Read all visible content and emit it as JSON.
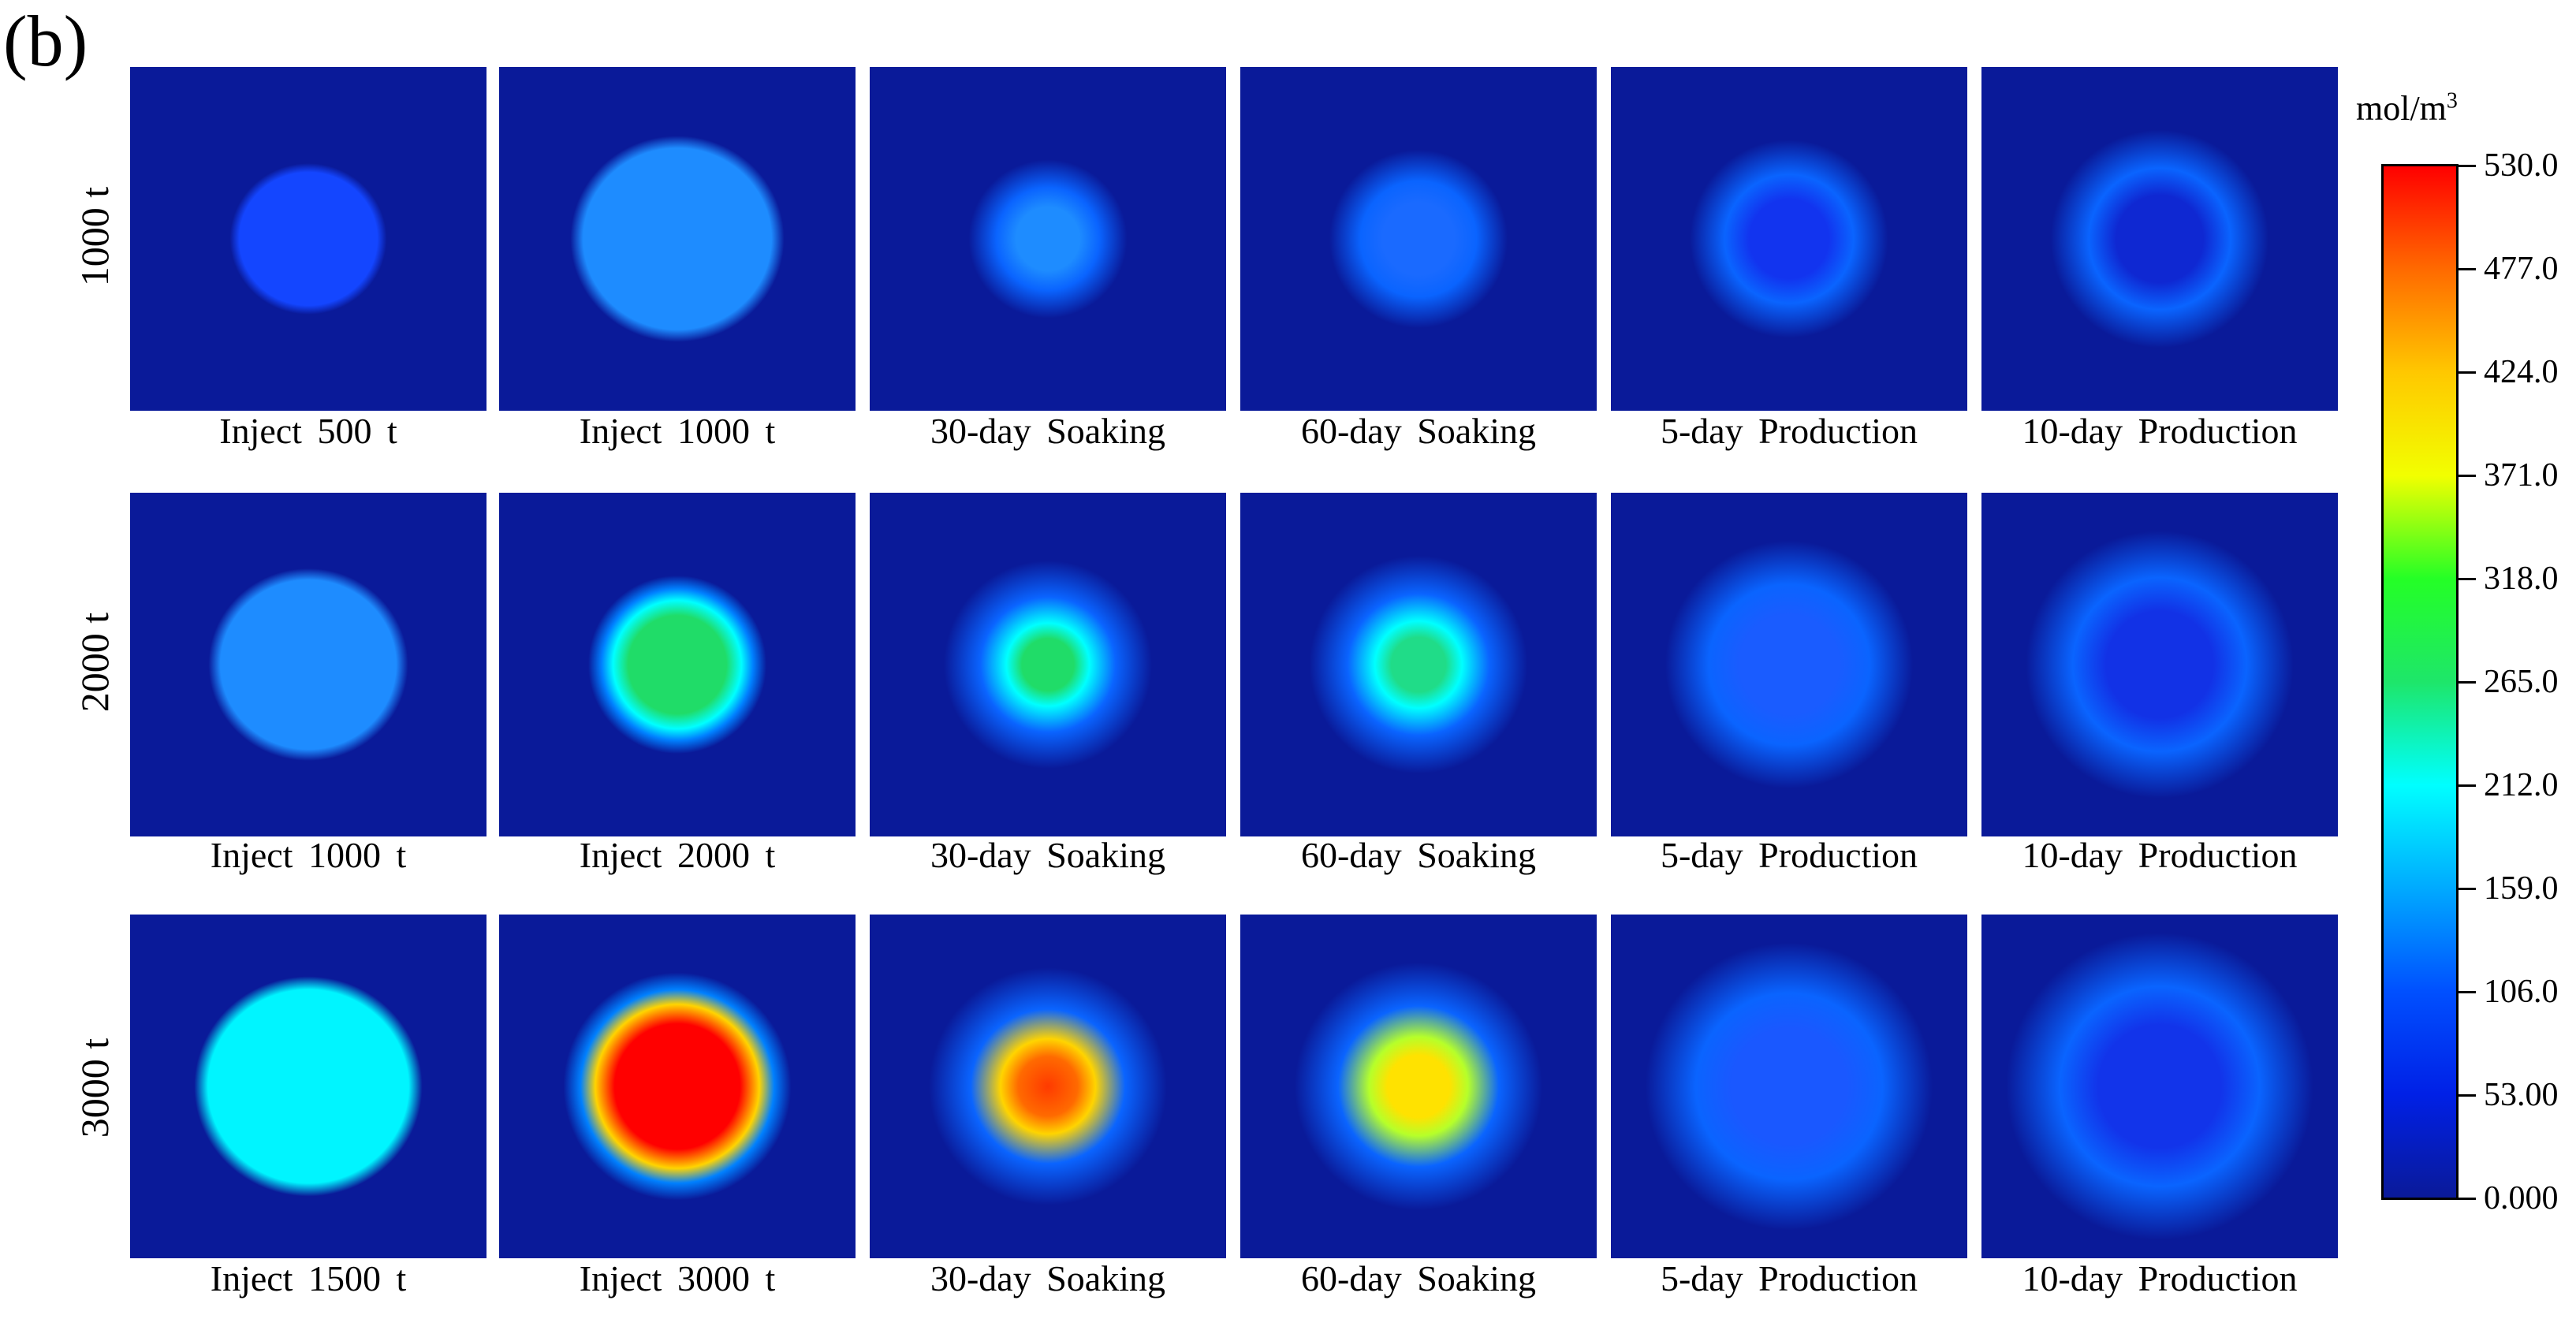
{
  "panel_label": "(b)",
  "colorbar": {
    "unit": "mol/m",
    "unit_sup": "3",
    "ticks": [
      "530.0",
      "477.0",
      "424.0",
      "371.0",
      "318.0",
      "265.0",
      "212.0",
      "159.0",
      "106.0",
      "53.00",
      "0.000"
    ],
    "gradient_colors": [
      "#ff0000",
      "#ff6a00",
      "#ffc800",
      "#f2ff00",
      "#24ff26",
      "#1ee66a",
      "#00ffff",
      "#00aaff",
      "#0050ff",
      "#0020e6",
      "#0a1a99"
    ]
  },
  "rows": [
    {
      "label": "1000 t",
      "tiles": [
        {
          "caption": "Inject 500 t",
          "core": "#1446ff",
          "inner": "#1446ff",
          "peak": "#1446ff"
        },
        {
          "caption": "Inject 1000 t",
          "core": "#1e8cff",
          "inner": "#1e8cff",
          "peak": "#1e8cff"
        },
        {
          "caption": "30-day  Soaking",
          "core": "#1e8cff",
          "inner": "#1e8cff",
          "peak": "#1e8cff"
        },
        {
          "caption": "60-day  Soaking",
          "core": "#1a6aff",
          "inner": "#1a6aff",
          "peak": "#1a6aff"
        },
        {
          "caption": "5-day  Production",
          "core": "#1234ef",
          "inner": "#1234ef",
          "peak": "#1234ef"
        },
        {
          "caption": "10-day  Production",
          "core": "#0f28d2",
          "inner": "#0f28d2",
          "peak": "#0f28d2"
        }
      ]
    },
    {
      "label": "2000 t",
      "tiles": [
        {
          "caption": "Inject 1000 t",
          "core": "#1e8cff",
          "inner": "#1e8cff",
          "peak": "#1e8cff"
        },
        {
          "caption": "Inject 2000 t",
          "core": "#20dc68",
          "inner": "#00ffff",
          "peak": "#20dc68"
        },
        {
          "caption": "30-day  Soaking",
          "core": "#20dc68",
          "inner": "#00ffff",
          "peak": "#20dc68"
        },
        {
          "caption": "60-day  Soaking",
          "core": "#20dc88",
          "inner": "#00ffff",
          "peak": "#20dc88"
        },
        {
          "caption": "5-day  Production",
          "core": "#1a5cff",
          "inner": "#1a5cff",
          "peak": "#1a5cff"
        },
        {
          "caption": "10-day  Production",
          "core": "#1232e6",
          "inner": "#1232e6",
          "peak": "#1232e6"
        }
      ]
    },
    {
      "label": "3000 t",
      "tiles": [
        {
          "caption": "Inject 1500 t",
          "core": "#00f5ff",
          "inner": "#00f5ff",
          "peak": "#00f5ff"
        },
        {
          "caption": "Inject 3000 t",
          "core": "#ff0000",
          "inner": "#ffd400",
          "peak": "#ff0000"
        },
        {
          "caption": "30-day  Soaking",
          "core": "#ff6a00",
          "inner": "#ffd400",
          "peak": "#ff3a00"
        },
        {
          "caption": "60-day  Soaking",
          "core": "#ffe200",
          "inner": "#b6ff2a",
          "peak": "#ffe200"
        },
        {
          "caption": "5-day  Production",
          "core": "#1a58ff",
          "inner": "#1a58ff",
          "peak": "#1a58ff"
        },
        {
          "caption": "10-day  Production",
          "core": "#1234ea",
          "inner": "#1234ea",
          "peak": "#1234ea"
        }
      ]
    }
  ]
}
